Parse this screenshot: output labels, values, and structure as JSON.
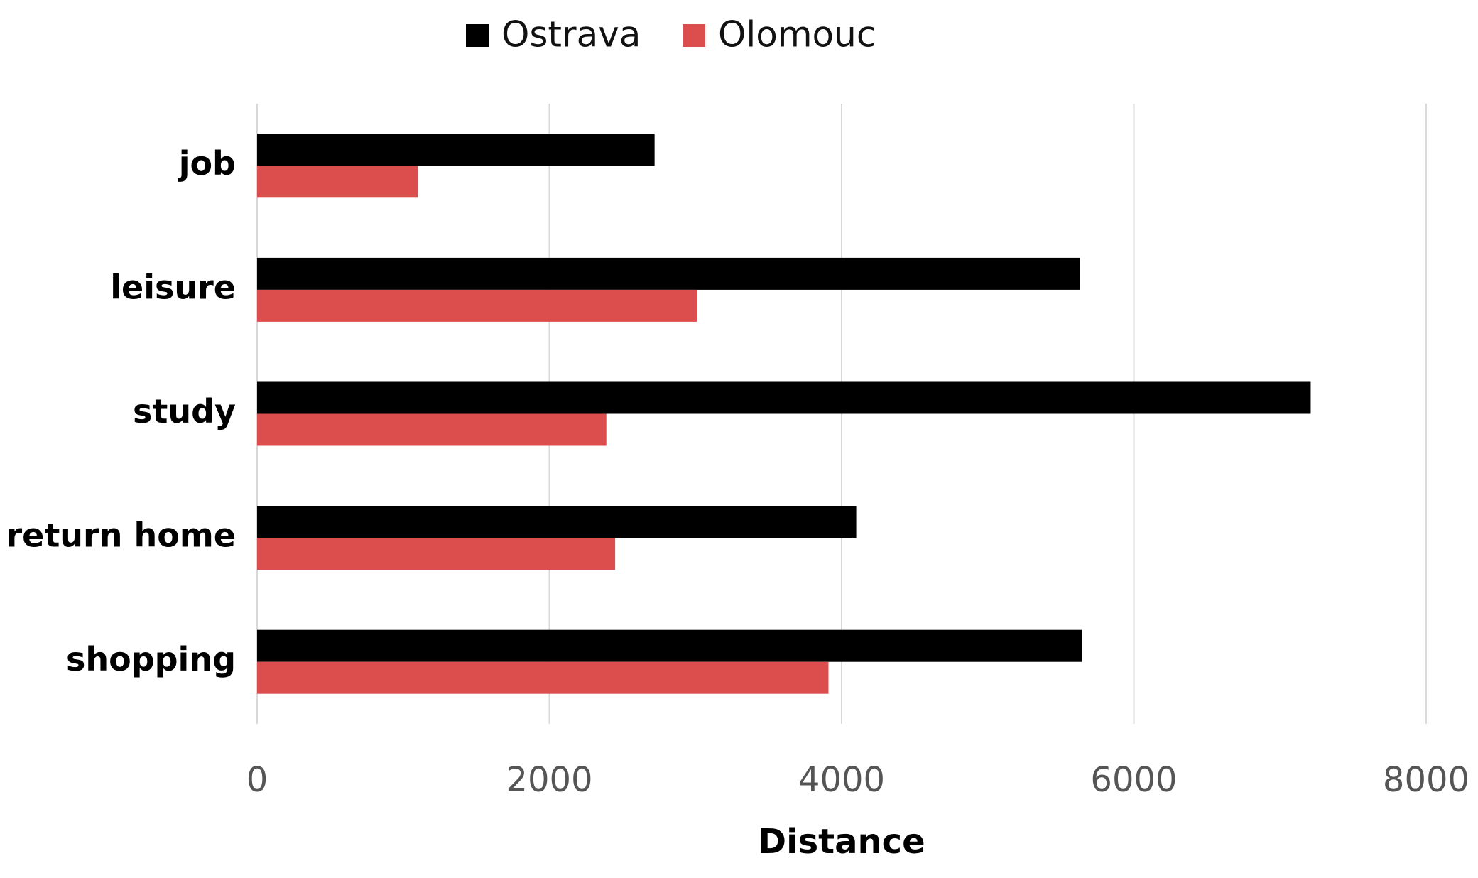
{
  "chart_data": {
    "type": "hbar",
    "categories": [
      "job",
      "leisure",
      "study",
      "return home",
      "shopping"
    ],
    "series": [
      {
        "name": "Ostrava",
        "color": "#000000",
        "values": [
          2720,
          5630,
          7210,
          4100,
          5645
        ]
      },
      {
        "name": "Olomouc",
        "color": "#dc4e4e",
        "values": [
          1100,
          3010,
          2390,
          2450,
          3910
        ]
      }
    ],
    "xlabel": "Distance",
    "xlim": [
      0,
      8000
    ],
    "xticks": [
      0,
      2000,
      4000,
      6000,
      8000
    ],
    "grid": true,
    "legend": "top"
  }
}
